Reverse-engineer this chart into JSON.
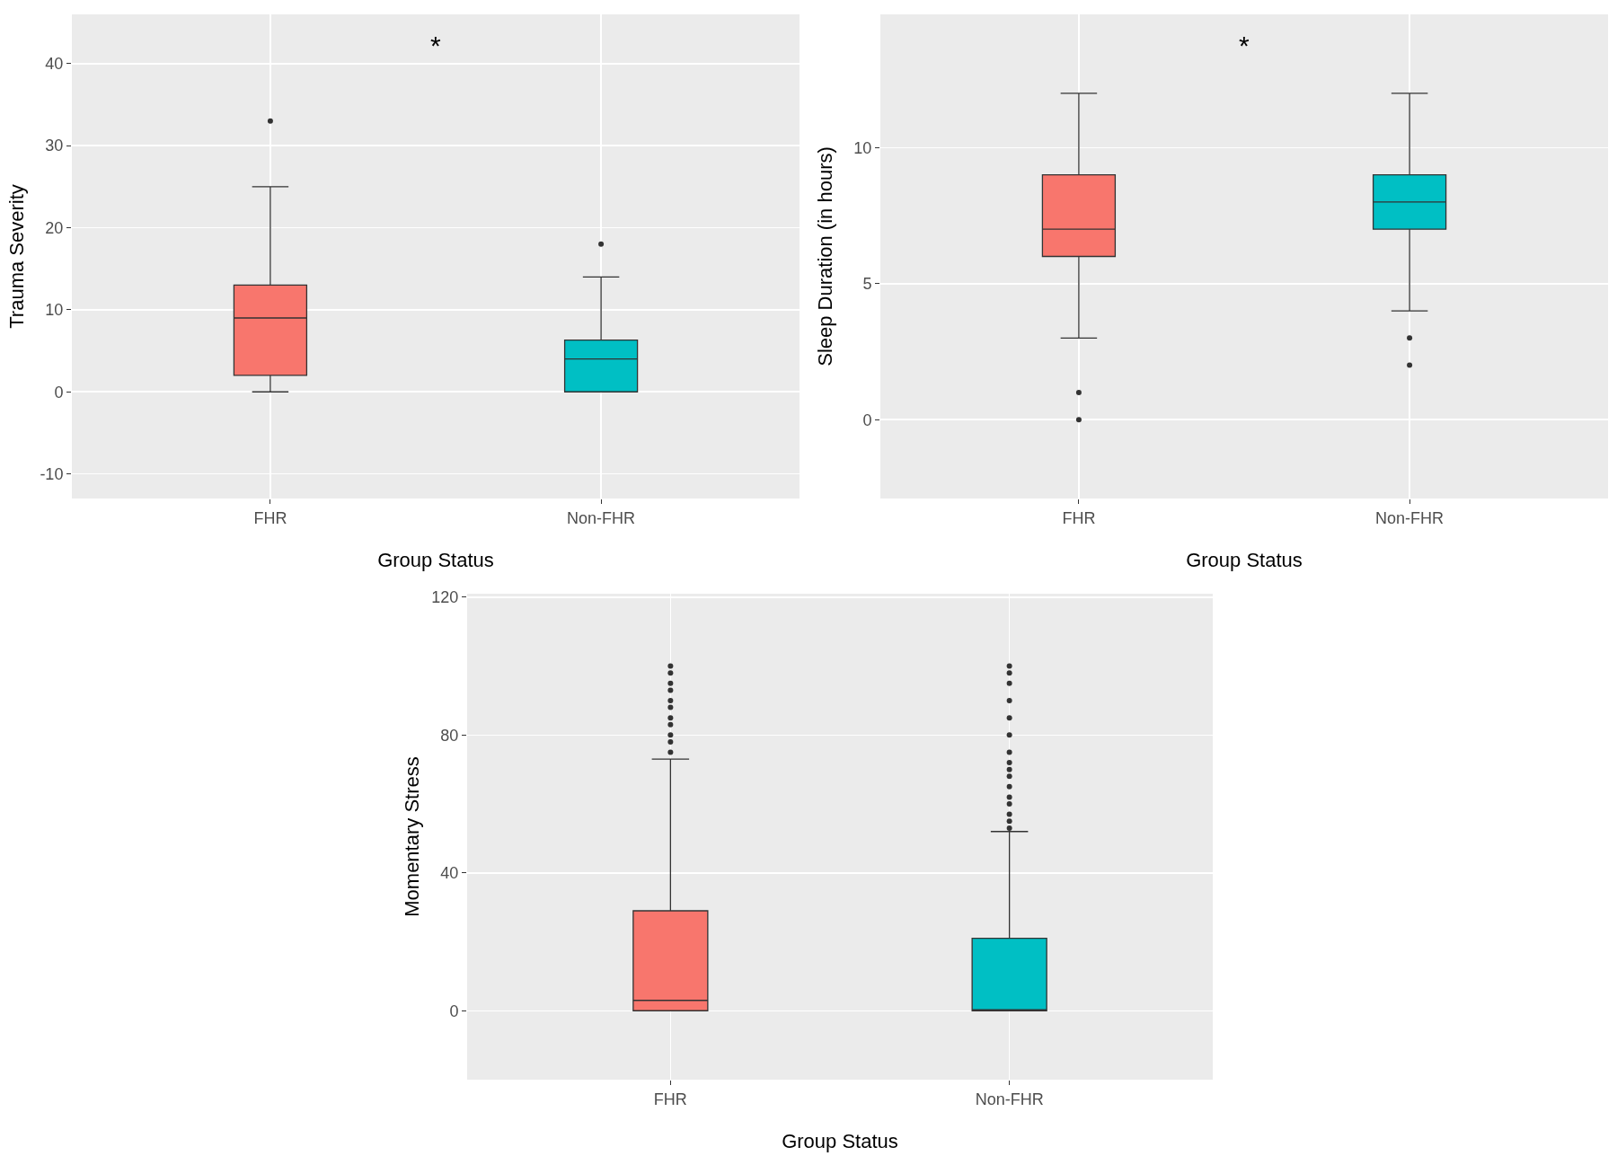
{
  "chart_data": [
    {
      "type": "box",
      "xlabel": "Group Status",
      "ylabel": "Trauma Severity",
      "categories": [
        "FHR",
        "Non-FHR"
      ],
      "colors": [
        "#f8766d",
        "#00bfc4"
      ],
      "ylim": [
        -13,
        46
      ],
      "yticks": [
        -10,
        0,
        10,
        20,
        30,
        40
      ],
      "grid": true,
      "annotations": [
        "*"
      ],
      "boxes": [
        {
          "low": 0,
          "q1": 2,
          "median": 9,
          "q3": 13,
          "high": 25,
          "outliers": [
            33
          ]
        },
        {
          "low": 0,
          "q1": 0,
          "median": 4,
          "q3": 6.3,
          "high": 14,
          "outliers": [
            18
          ]
        }
      ]
    },
    {
      "type": "box",
      "xlabel": "Group Status",
      "ylabel": "Sleep Duration (in hours)",
      "categories": [
        "FHR",
        "Non-FHR"
      ],
      "colors": [
        "#f8766d",
        "#00bfc4"
      ],
      "ylim": [
        -2.9,
        14.9
      ],
      "yticks": [
        0,
        5,
        10
      ],
      "grid": true,
      "annotations": [
        "*"
      ],
      "boxes": [
        {
          "low": 3,
          "q1": 6,
          "median": 7,
          "q3": 9,
          "high": 12,
          "outliers": [
            1,
            0
          ]
        },
        {
          "low": 4,
          "q1": 7,
          "median": 8,
          "q3": 9,
          "high": 12,
          "outliers": [
            3,
            2
          ]
        }
      ]
    },
    {
      "type": "box",
      "xlabel": "Group Status",
      "ylabel": "Momentary Stress",
      "categories": [
        "FHR",
        "Non-FHR"
      ],
      "colors": [
        "#f8766d",
        "#00bfc4"
      ],
      "ylim": [
        -20,
        121
      ],
      "yticks": [
        0,
        40,
        80,
        120
      ],
      "grid": true,
      "boxes": [
        {
          "low": 0,
          "q1": 0,
          "median": 3,
          "q3": 29,
          "high": 73,
          "outliers": [
            75,
            78,
            80,
            83,
            85,
            88,
            90,
            93,
            95,
            98,
            100
          ]
        },
        {
          "low": 0,
          "q1": 0,
          "median": 0,
          "q3": 21,
          "high": 52,
          "outliers": [
            53,
            55,
            57,
            60,
            62,
            65,
            68,
            70,
            72,
            75,
            80,
            85,
            90,
            95,
            98,
            100
          ]
        }
      ]
    }
  ]
}
